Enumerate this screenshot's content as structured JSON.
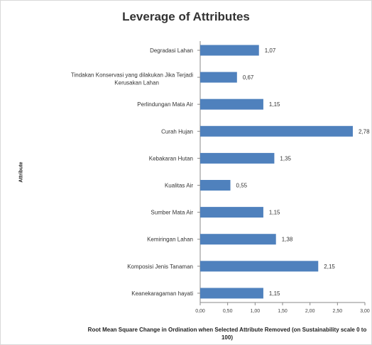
{
  "chart_data": {
    "type": "bar",
    "orientation": "horizontal",
    "title": "Leverage of Attributes",
    "xlabel": "Root Mean Square Change in Ordination when Selected Attribute Removed (on Sustainability scale 0 to 100)",
    "ylabel": "Attribute",
    "categories": [
      "Degradasi Lahan",
      "Tindakan Konservasi yang dilakukan Jika Terjadi Kerusakan Lahan",
      "Perlindungan Mata Air",
      "Curah Hujan",
      "Kebakaran Hutan",
      "Kualitas Air",
      "Sumber Mata Air",
      "Kemiringan Lahan",
      "Komposisi Jenis Tanaman",
      "Keanekaragaman hayati"
    ],
    "values": [
      1.07,
      0.67,
      1.15,
      2.78,
      1.35,
      0.55,
      1.15,
      1.38,
      2.15,
      1.15
    ],
    "value_labels": [
      "1,07",
      "0,67",
      "1,15",
      "2,78",
      "1,35",
      "0,55",
      "1,15",
      "1,38",
      "2,15",
      "1,15"
    ],
    "xlim": [
      0,
      3
    ],
    "xticks": [
      "0,00",
      "0,50",
      "1,00",
      "1,50",
      "2,00",
      "2,50",
      "3,00"
    ],
    "grid": false,
    "bar_color": "#4F81BD"
  }
}
